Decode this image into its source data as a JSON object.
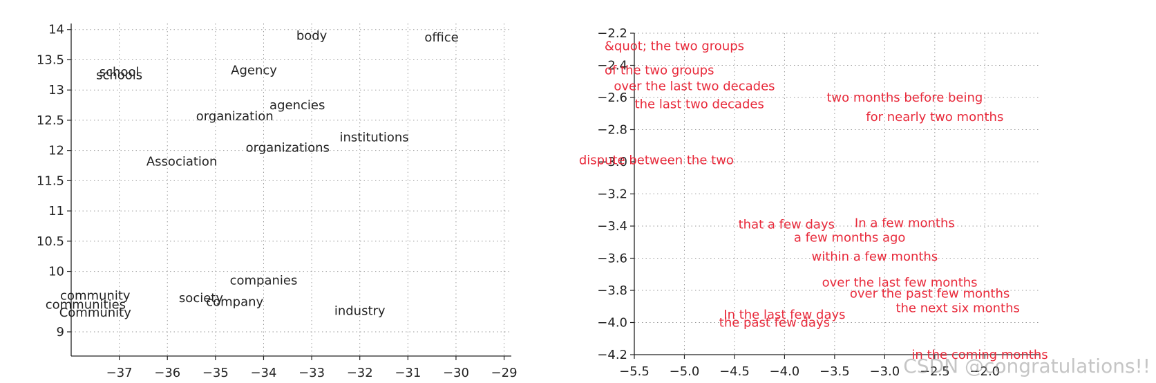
{
  "chart_data": [
    {
      "type": "scatter",
      "xlim": [
        -38,
        -28.85
      ],
      "ylim": [
        8.6,
        14.1
      ],
      "xticks": [
        -37,
        -36,
        -35,
        -34,
        -33,
        -32,
        -31,
        -30,
        -29
      ],
      "yticks": [
        9,
        10,
        10.5,
        11,
        11.5,
        12,
        12.5,
        13,
        13.5,
        14
      ],
      "grid": true,
      "text_color": "#222222",
      "points": [
        {
          "label": "body",
          "x": -33.0,
          "y": 13.9
        },
        {
          "label": "office",
          "x": -30.3,
          "y": 13.87
        },
        {
          "label": "school",
          "x": -37.0,
          "y": 13.3
        },
        {
          "label": "schools",
          "x": -37.0,
          "y": 13.25
        },
        {
          "label": "Agency",
          "x": -34.2,
          "y": 13.33
        },
        {
          "label": "agencies",
          "x": -33.3,
          "y": 12.75
        },
        {
          "label": "organization",
          "x": -34.6,
          "y": 12.57
        },
        {
          "label": "institutions",
          "x": -31.7,
          "y": 12.22
        },
        {
          "label": "organizations",
          "x": -33.5,
          "y": 12.05
        },
        {
          "label": "Association",
          "x": -35.7,
          "y": 11.82
        },
        {
          "label": "companies",
          "x": -34.0,
          "y": 9.85
        },
        {
          "label": "community",
          "x": -37.5,
          "y": 9.6
        },
        {
          "label": "society",
          "x": -35.3,
          "y": 9.56
        },
        {
          "label": "company",
          "x": -34.6,
          "y": 9.5
        },
        {
          "label": "communities",
          "x": -37.7,
          "y": 9.45
        },
        {
          "label": "Community",
          "x": -37.5,
          "y": 9.32
        },
        {
          "label": "industry",
          "x": -32.0,
          "y": 9.35
        }
      ]
    },
    {
      "type": "scatter",
      "xlim": [
        -5.5,
        -1.45
      ],
      "ylim": [
        -4.2,
        -2.2
      ],
      "xticks": [
        -5.5,
        -5,
        -4.5,
        -4,
        -3.5,
        -3,
        -2.5,
        -2
      ],
      "yticks": [
        -2.2,
        -2.4,
        -2.6,
        -2.8,
        -3,
        -3.2,
        -3.4,
        -3.6,
        -3.8,
        -4,
        -4.2
      ],
      "grid": true,
      "text_color": "#e8293a",
      "points": [
        {
          "label": "&quot; the two groups",
          "x": -5.1,
          "y": -2.28
        },
        {
          "label": "of the two groups",
          "x": -5.25,
          "y": -2.43
        },
        {
          "label": "over the last two decades",
          "x": -4.9,
          "y": -2.53
        },
        {
          "label": "the last two decades",
          "x": -4.85,
          "y": -2.64
        },
        {
          "label": "two months before being",
          "x": -2.8,
          "y": -2.6
        },
        {
          "label": "for nearly two months",
          "x": -2.5,
          "y": -2.72
        },
        {
          "label": "dispute between the two",
          "x": -5.28,
          "y": -2.99
        },
        {
          "label": "that a few days",
          "x": -3.98,
          "y": -3.39
        },
        {
          "label": "In a few months",
          "x": -2.8,
          "y": -3.38
        },
        {
          "label": "a few months ago",
          "x": -3.35,
          "y": -3.47
        },
        {
          "label": "within a few months",
          "x": -3.1,
          "y": -3.59
        },
        {
          "label": "over the last few months",
          "x": -2.85,
          "y": -3.75
        },
        {
          "label": "over the past few months",
          "x": -2.55,
          "y": -3.82
        },
        {
          "label": "the next six months",
          "x": -2.27,
          "y": -3.91
        },
        {
          "label": "In the last few days",
          "x": -4.0,
          "y": -3.95
        },
        {
          "label": "the past few days",
          "x": -4.1,
          "y": -4.0
        },
        {
          "label": "in the coming months",
          "x": -2.05,
          "y": -4.2
        }
      ]
    }
  ],
  "watermark": "CSDN @congratulations!!"
}
